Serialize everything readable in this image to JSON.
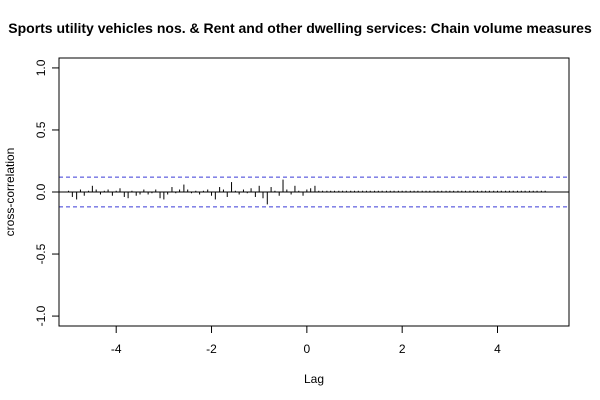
{
  "chart_data": {
    "type": "bar",
    "title": "Sports utility vehicles nos.  & Rent and other dwelling services: Chain volume measures",
    "xlabel": "Lag",
    "ylabel": "cross-correlation",
    "xlim": [
      -5.2,
      5.5
    ],
    "ylim": [
      -1.08,
      1.08
    ],
    "x_ticks": [
      -4,
      -2,
      0,
      2,
      4
    ],
    "y_ticks": [
      -1.0,
      -0.5,
      0.0,
      0.5,
      1.0
    ],
    "x_tick_labels": [
      "-4",
      "-2",
      "0",
      "2",
      "4"
    ],
    "y_tick_labels": [
      "-1.0",
      "-0.5",
      "0.0",
      "0.5",
      "1.0"
    ],
    "ci_bounds": [
      0.12,
      -0.12
    ],
    "grid": false,
    "colors": {
      "bars": "#000000",
      "ci": "#3b3bd6",
      "axis": "#000000"
    },
    "x": [
      -5.0,
      -4.92,
      -4.83,
      -4.75,
      -4.67,
      -4.58,
      -4.5,
      -4.42,
      -4.33,
      -4.25,
      -4.17,
      -4.08,
      -4.0,
      -3.92,
      -3.83,
      -3.75,
      -3.67,
      -3.58,
      -3.5,
      -3.42,
      -3.33,
      -3.25,
      -3.17,
      -3.08,
      -3.0,
      -2.92,
      -2.83,
      -2.75,
      -2.67,
      -2.58,
      -2.5,
      -2.42,
      -2.33,
      -2.25,
      -2.17,
      -2.08,
      -2.0,
      -1.92,
      -1.83,
      -1.75,
      -1.67,
      -1.58,
      -1.5,
      -1.42,
      -1.33,
      -1.25,
      -1.17,
      -1.08,
      -1.0,
      -0.92,
      -0.83,
      -0.75,
      -0.67,
      -0.58,
      -0.5,
      -0.42,
      -0.33,
      -0.25,
      -0.17,
      -0.08,
      0.0,
      0.08,
      0.17,
      0.25,
      0.33,
      0.42,
      0.5,
      0.58,
      0.67,
      0.75,
      0.83,
      0.92,
      1.0,
      1.08,
      1.17,
      1.25,
      1.33,
      1.42,
      1.5,
      1.58,
      1.67,
      1.75,
      1.83,
      1.92,
      2.0,
      2.08,
      2.17,
      2.25,
      2.33,
      2.42,
      2.5,
      2.58,
      2.67,
      2.75,
      2.83,
      2.92,
      3.0,
      3.08,
      3.17,
      3.25,
      3.33,
      3.42,
      3.5,
      3.58,
      3.67,
      3.75,
      3.83,
      3.92,
      4.0,
      4.08,
      4.17,
      4.25,
      4.33,
      4.42,
      4.5,
      4.58,
      4.67,
      4.75,
      4.83,
      4.92,
      5.0
    ],
    "values": [
      0.01,
      -0.04,
      -0.06,
      0.02,
      -0.03,
      0.01,
      0.05,
      0.02,
      -0.02,
      0.01,
      0.02,
      -0.03,
      0.01,
      0.03,
      -0.04,
      -0.05,
      0.01,
      -0.03,
      -0.02,
      0.02,
      -0.02,
      -0.01,
      0.02,
      -0.05,
      -0.06,
      -0.02,
      0.04,
      -0.01,
      0.02,
      0.06,
      0.02,
      -0.01,
      0.01,
      -0.02,
      0.01,
      0.02,
      -0.03,
      -0.06,
      0.04,
      0.02,
      -0.04,
      0.08,
      0.01,
      -0.02,
      0.02,
      -0.01,
      0.03,
      -0.04,
      0.05,
      -0.05,
      -0.1,
      0.04,
      0.01,
      -0.03,
      0.1,
      0.02,
      -0.02,
      0.05,
      0.01,
      -0.03,
      0.02,
      0.03,
      0.05,
      0.01,
      0.01,
      0.01,
      0.01,
      0.01,
      0.01,
      0.01,
      0.01,
      0.01,
      0.01,
      0.01,
      0.01,
      0.01,
      0.01,
      0.01,
      0.01,
      0.01,
      0.01,
      0.01,
      0.01,
      0.01,
      0.01,
      0.01,
      0.01,
      0.01,
      0.01,
      0.01,
      0.01,
      0.01,
      0.01,
      0.01,
      0.01,
      0.01,
      0.01,
      0.01,
      0.01,
      0.01,
      0.01,
      0.01,
      0.01,
      0.01,
      0.01,
      0.01,
      0.01,
      0.01,
      0.01,
      0.01,
      0.01,
      0.01,
      0.01,
      0.01,
      0.01,
      0.01,
      0.01,
      0.01,
      0.01,
      0.01,
      0.01
    ]
  }
}
